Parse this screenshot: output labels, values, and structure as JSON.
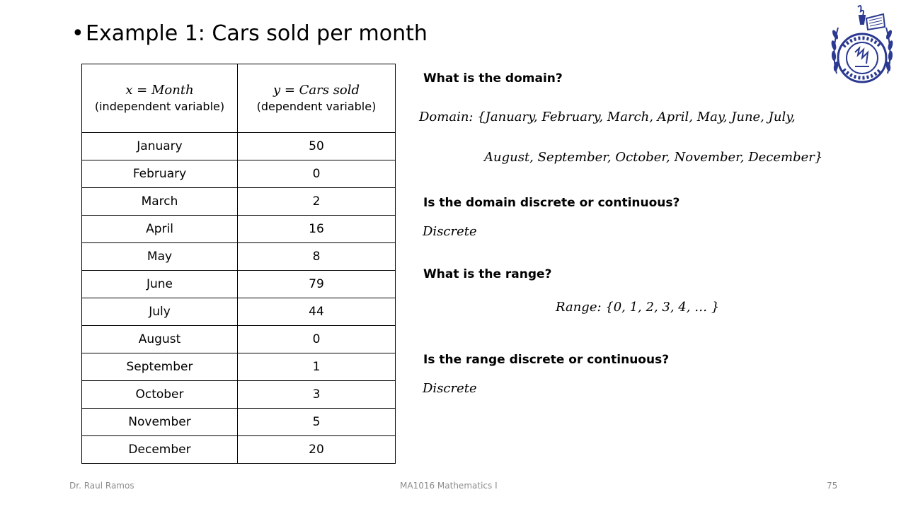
{
  "slide": {
    "title": "Example 1: Cars sold per month"
  },
  "table": {
    "x_header_math": "x = Month",
    "x_header_sub": "(independent variable)",
    "y_header_math": "y = Cars sold",
    "y_header_sub": "(dependent variable)",
    "rows": [
      {
        "month": "January",
        "cars": "50"
      },
      {
        "month": "February",
        "cars": "0"
      },
      {
        "month": "March",
        "cars": "2"
      },
      {
        "month": "April",
        "cars": "16"
      },
      {
        "month": "May",
        "cars": "8"
      },
      {
        "month": "June",
        "cars": "79"
      },
      {
        "month": "July",
        "cars": "44"
      },
      {
        "month": "August",
        "cars": "0"
      },
      {
        "month": "September",
        "cars": "1"
      },
      {
        "month": "October",
        "cars": "3"
      },
      {
        "month": "November",
        "cars": "5"
      },
      {
        "month": "December",
        "cars": "20"
      }
    ]
  },
  "questions": {
    "domain_q": "What is the domain?",
    "domain_line1": "Domain: {January, February, March, April, May, June, July,",
    "domain_line2": "August, September, October, November, December}",
    "domain_type_q": "Is the domain discrete or continuous?",
    "domain_type_a": "Discrete",
    "range_q": "What is the range?",
    "range_a": "Range: {0, 1, 2, 3, 4, … }",
    "range_type_q": "Is the range discrete or continuous?",
    "range_type_a": "Discrete"
  },
  "footer": {
    "author": "Dr. Raul Ramos",
    "course": "MA1016 Mathematics I",
    "page": "75"
  },
  "logo": {
    "icon": "tecnologico-de-monterrey-seal",
    "color": "#2b3990"
  }
}
